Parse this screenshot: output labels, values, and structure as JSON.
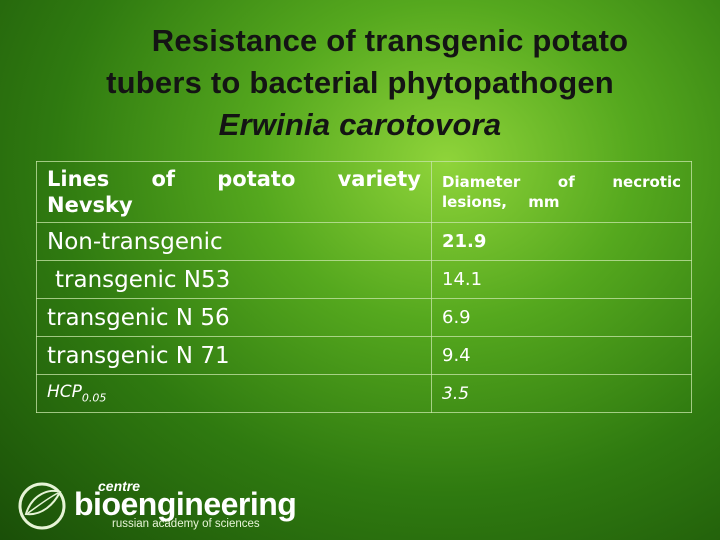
{
  "title": {
    "line1": "Resistance of transgenic potato",
    "line2": "tubers to bacterial phytopathogen",
    "line3": "Erwinia carotovora"
  },
  "table": {
    "header": {
      "col1": "Lines of potato variety Nevsky",
      "col2": "Diameter of necrotic lesions, mm"
    },
    "rows": [
      {
        "line": "Non-transgenic",
        "value": "21.9"
      },
      {
        "line": "transgenic N53",
        "value": "14.1"
      },
      {
        "line": "transgenic N 56",
        "value": "6.9"
      },
      {
        "line": "transgenic N 71",
        "value": "9.4"
      }
    ],
    "hcp": {
      "label": "HCP",
      "subscript": "0.05",
      "value": "3.5"
    }
  },
  "logo": {
    "small": "centre",
    "bio": "bio",
    "engineering": "engineering",
    "subtitle": "russian academy of sciences"
  },
  "colors": {
    "background": "#4f9f1c",
    "title": "#141414",
    "highlight": "#b81c10"
  }
}
